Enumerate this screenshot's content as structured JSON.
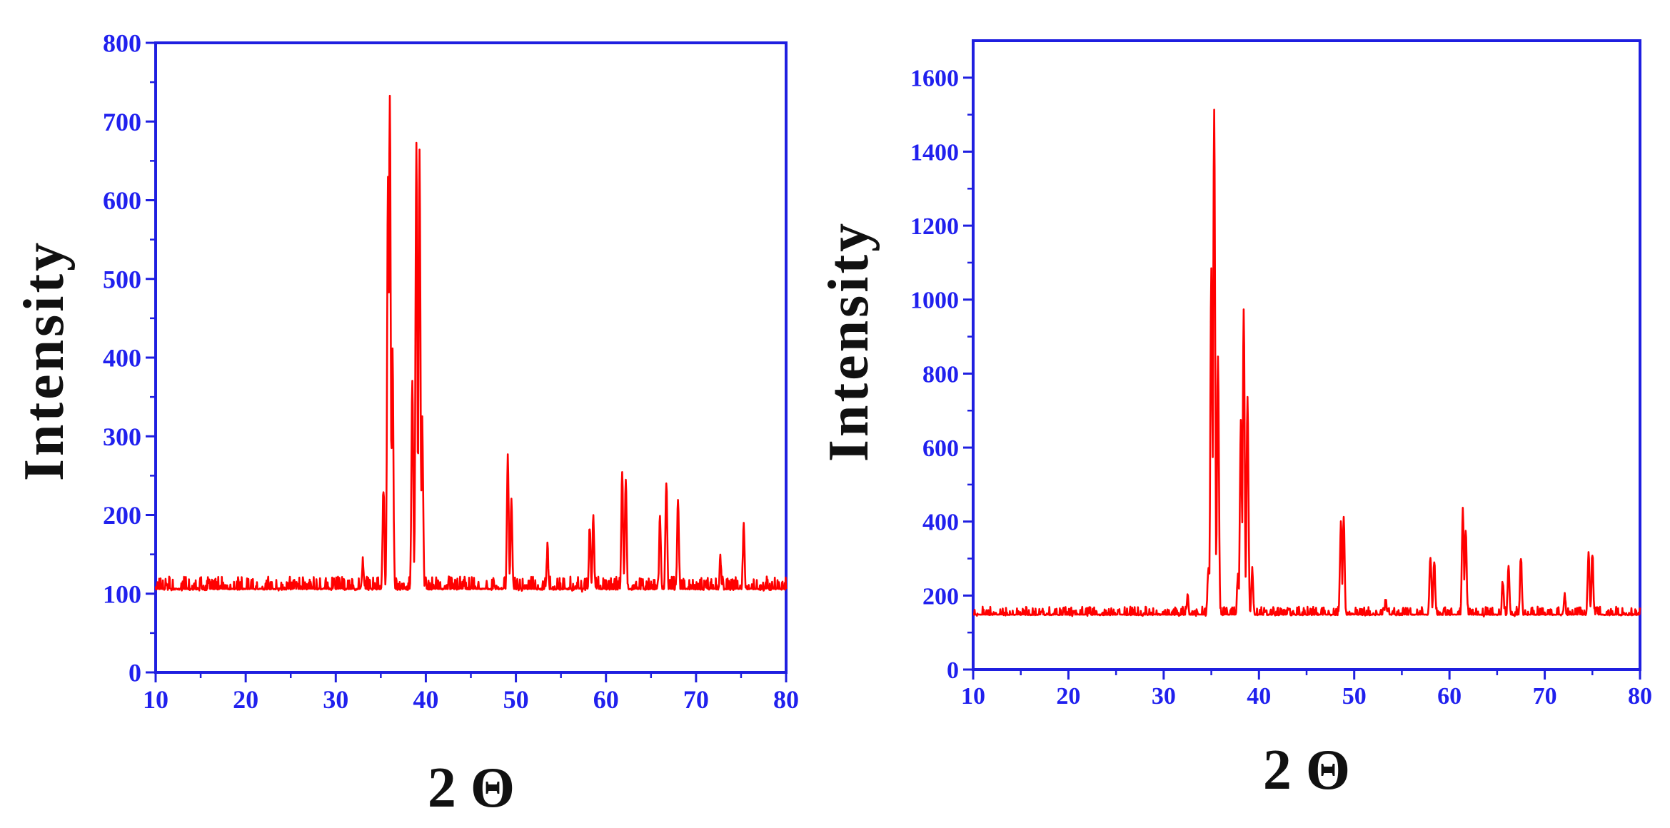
{
  "colors": {
    "axis": "#1f1fe0",
    "trace": "#ff0000",
    "tick_text": "#2020ee",
    "label_text": "#111111"
  },
  "chart_data": [
    {
      "type": "line",
      "title": "",
      "xlabel": "2 Θ",
      "ylabel": "Intensity",
      "xlim": [
        10,
        80
      ],
      "ylim": [
        0,
        800
      ],
      "xticks": [
        10,
        20,
        30,
        40,
        50,
        60,
        70,
        80
      ],
      "yticks": [
        0,
        100,
        200,
        300,
        400,
        500,
        600,
        700,
        800
      ],
      "grid": false,
      "legend": "none",
      "series": [
        {
          "baseline": 100,
          "noise": 22,
          "peaks": [
            {
              "x": 33,
              "y": 140
            },
            {
              "x": 35.3,
              "y": 235
            },
            {
              "x": 35.8,
              "y": 635
            },
            {
              "x": 36.0,
              "y": 735
            },
            {
              "x": 36.3,
              "y": 415
            },
            {
              "x": 38.5,
              "y": 375
            },
            {
              "x": 38.95,
              "y": 677
            },
            {
              "x": 39.3,
              "y": 660
            },
            {
              "x": 39.6,
              "y": 320
            },
            {
              "x": 49.1,
              "y": 275
            },
            {
              "x": 49.5,
              "y": 215
            },
            {
              "x": 53.5,
              "y": 160
            },
            {
              "x": 58.2,
              "y": 185
            },
            {
              "x": 58.6,
              "y": 195
            },
            {
              "x": 61.8,
              "y": 250
            },
            {
              "x": 62.2,
              "y": 245
            },
            {
              "x": 66.0,
              "y": 200
            },
            {
              "x": 66.7,
              "y": 240
            },
            {
              "x": 68.0,
              "y": 225
            },
            {
              "x": 72.7,
              "y": 150
            },
            {
              "x": 75.3,
              "y": 190
            }
          ]
        }
      ]
    },
    {
      "type": "line",
      "title": "",
      "xlabel": "2 Θ",
      "ylabel": "Intensity",
      "xlim": [
        10,
        80
      ],
      "ylim": [
        0,
        1700
      ],
      "xticks": [
        10,
        20,
        30,
        40,
        50,
        60,
        70,
        80
      ],
      "yticks": [
        0,
        200,
        400,
        600,
        800,
        1000,
        1200,
        1400,
        1600
      ],
      "grid": false,
      "legend": "none",
      "series": [
        {
          "baseline": 140,
          "noise": 30,
          "peaks": [
            {
              "x": 32.5,
              "y": 200
            },
            {
              "x": 34.7,
              "y": 280
            },
            {
              "x": 35.0,
              "y": 1080
            },
            {
              "x": 35.3,
              "y": 1520
            },
            {
              "x": 35.7,
              "y": 840
            },
            {
              "x": 37.8,
              "y": 260
            },
            {
              "x": 38.1,
              "y": 680
            },
            {
              "x": 38.4,
              "y": 970
            },
            {
              "x": 38.8,
              "y": 740
            },
            {
              "x": 39.3,
              "y": 270
            },
            {
              "x": 48.6,
              "y": 400
            },
            {
              "x": 48.9,
              "y": 410
            },
            {
              "x": 53.3,
              "y": 185
            },
            {
              "x": 58.0,
              "y": 310
            },
            {
              "x": 58.4,
              "y": 290
            },
            {
              "x": 61.4,
              "y": 440
            },
            {
              "x": 61.7,
              "y": 380
            },
            {
              "x": 65.6,
              "y": 240
            },
            {
              "x": 66.2,
              "y": 280
            },
            {
              "x": 67.5,
              "y": 305
            },
            {
              "x": 72.1,
              "y": 200
            },
            {
              "x": 74.6,
              "y": 320
            },
            {
              "x": 75.0,
              "y": 315
            }
          ]
        }
      ]
    }
  ]
}
